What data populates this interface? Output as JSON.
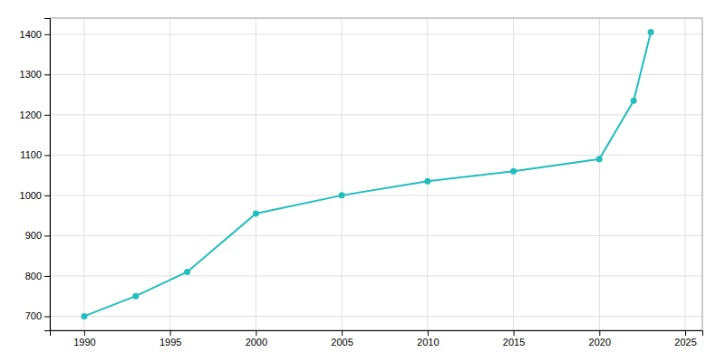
{
  "chart_data": {
    "type": "line",
    "x": [
      1990,
      1993,
      1996,
      2000,
      2005,
      2010,
      2015,
      2020,
      2022,
      2023
    ],
    "values": [
      700,
      750,
      810,
      955,
      1000,
      1035,
      1060,
      1090,
      1235,
      1405
    ],
    "color": "#22BDBD",
    "marker": "circle",
    "xlim": [
      1988,
      2026
    ],
    "ylim": [
      665,
      1440
    ],
    "xticks": [
      1990,
      1995,
      2000,
      2005,
      2010,
      2015,
      2020,
      2025
    ],
    "yticks": [
      700,
      800,
      900,
      1000,
      1100,
      1200,
      1300,
      1400
    ],
    "grid": true
  }
}
